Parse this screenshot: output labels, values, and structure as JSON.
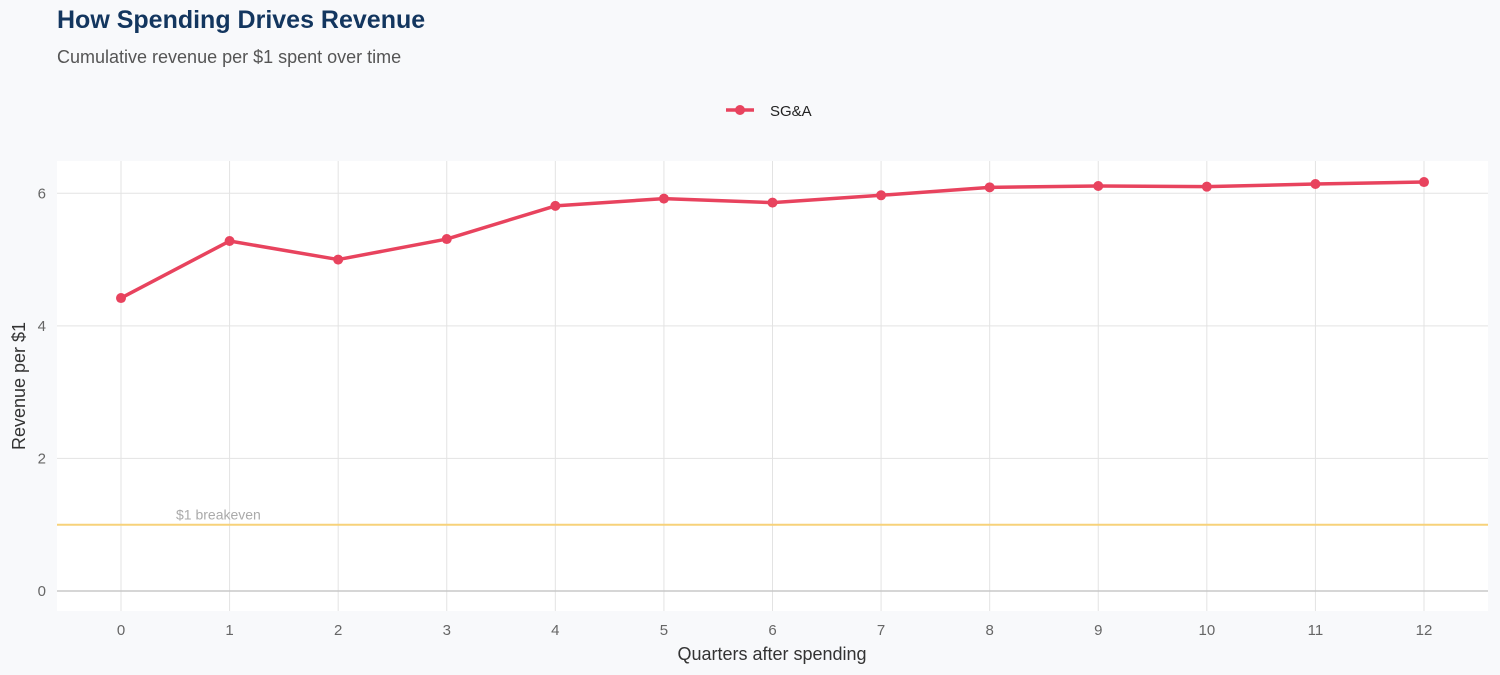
{
  "chart_data": {
    "type": "line",
    "title": "How Spending Drives Revenue",
    "subtitle": "Cumulative revenue per $1 spent over time",
    "xlabel": "Quarters after spending",
    "ylabel": "Revenue per $1",
    "x": [
      0,
      1,
      2,
      3,
      4,
      5,
      6,
      7,
      8,
      9,
      10,
      11,
      12
    ],
    "xlim": [
      -0.6,
      12.6
    ],
    "ylim": [
      -0.3,
      6.5
    ],
    "yticks": [
      0,
      2,
      4,
      6
    ],
    "grid": true,
    "legend_placement": "top",
    "series": [
      {
        "name": "SG&A",
        "color": "#e8435e",
        "values": [
          4.42,
          5.28,
          5.0,
          5.31,
          5.81,
          5.92,
          5.86,
          5.97,
          6.09,
          6.11,
          6.1,
          6.14,
          6.17
        ]
      }
    ],
    "reference_line": {
      "y": 1,
      "label": "$1 breakeven",
      "color": "#f7d27a"
    }
  }
}
